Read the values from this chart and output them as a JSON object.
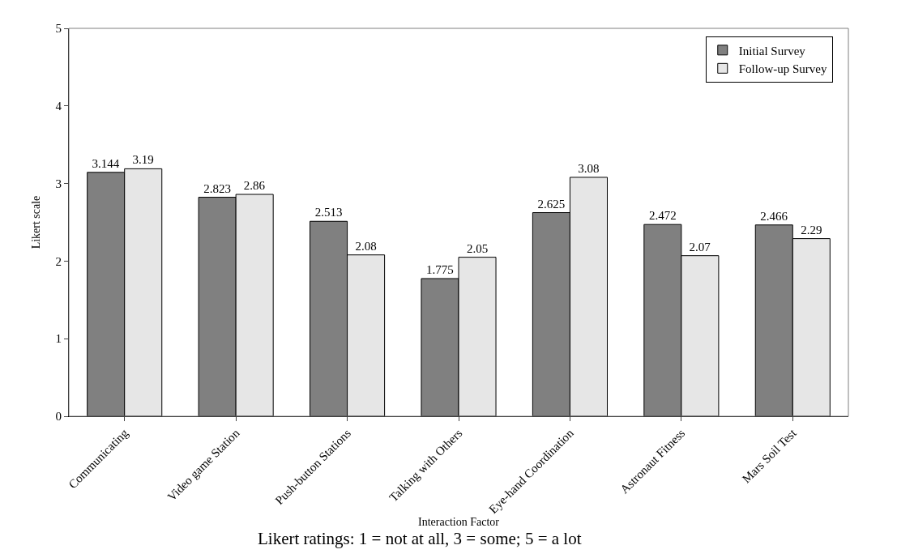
{
  "chart_data": {
    "type": "bar",
    "xlabel": "Interaction Factor",
    "ylabel": "Likert scale",
    "categories": [
      "Communicating",
      "Video game Station",
      "Push-button Stations",
      "Talking with Others",
      "Eye-hand Coordination",
      "Astronaut Fitness",
      "Mars Soil Test"
    ],
    "series": [
      {
        "name": "Initial Survey",
        "color": "#808080",
        "values": [
          3.144,
          2.823,
          2.513,
          1.775,
          2.625,
          2.472,
          2.466
        ]
      },
      {
        "name": "Follow-up Survey",
        "color": "#e6e6e6",
        "values": [
          3.19,
          2.86,
          2.08,
          2.05,
          3.08,
          2.07,
          2.29
        ]
      }
    ],
    "ylim": [
      0,
      5
    ],
    "yticks": [
      0,
      1,
      2,
      3,
      4,
      5
    ],
    "data_labels": true,
    "legend": "top right",
    "annotations": [
      "Likert ratings: 1 = not at all, 3 = some; 5 = a lot"
    ]
  }
}
